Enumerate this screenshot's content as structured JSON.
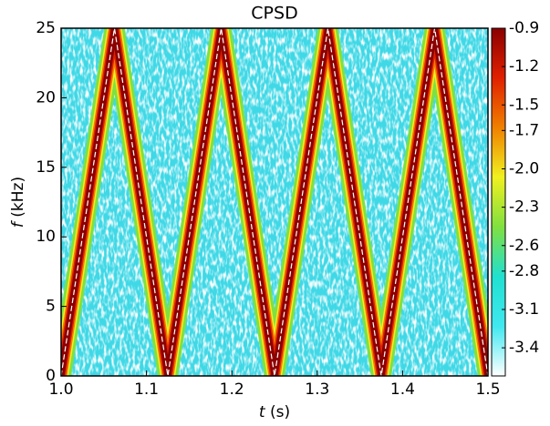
{
  "chart_data": {
    "type": "spectrogram",
    "title": "CPSD",
    "xlabel_symbol": "t",
    "xlabel_unit": "(s)",
    "ylabel_symbol": "f",
    "ylabel_unit": "(kHz)",
    "x": [
      1.0,
      1.0625,
      1.125,
      1.1875,
      1.25,
      1.3125,
      1.375,
      1.4375,
      1.5
    ],
    "values": [
      0,
      25,
      0,
      25,
      0,
      25,
      0,
      25,
      0
    ],
    "xlim": [
      1.0,
      1.5
    ],
    "xticks": [
      {
        "value": 1.0,
        "label": "1.0"
      },
      1.1,
      1.2,
      1.3,
      1.4,
      1.5
    ],
    "ylim": [
      0,
      25
    ],
    "yticks": [
      0,
      5,
      10,
      15,
      20,
      25
    ],
    "clim": [
      -3.62,
      -0.9
    ],
    "cticks": [
      -0.9,
      -1.2,
      -1.5,
      -1.7,
      {
        "value": -2.0,
        "label": "-2.0"
      },
      -2.3,
      -2.6,
      -2.8,
      -3.1,
      -3.4
    ],
    "colormap": [
      "#ffffff",
      "#40e8f0",
      "#20e0d0",
      "#80e040",
      "#f0f020",
      "#f08000",
      "#e02000",
      "#8b0000"
    ]
  }
}
